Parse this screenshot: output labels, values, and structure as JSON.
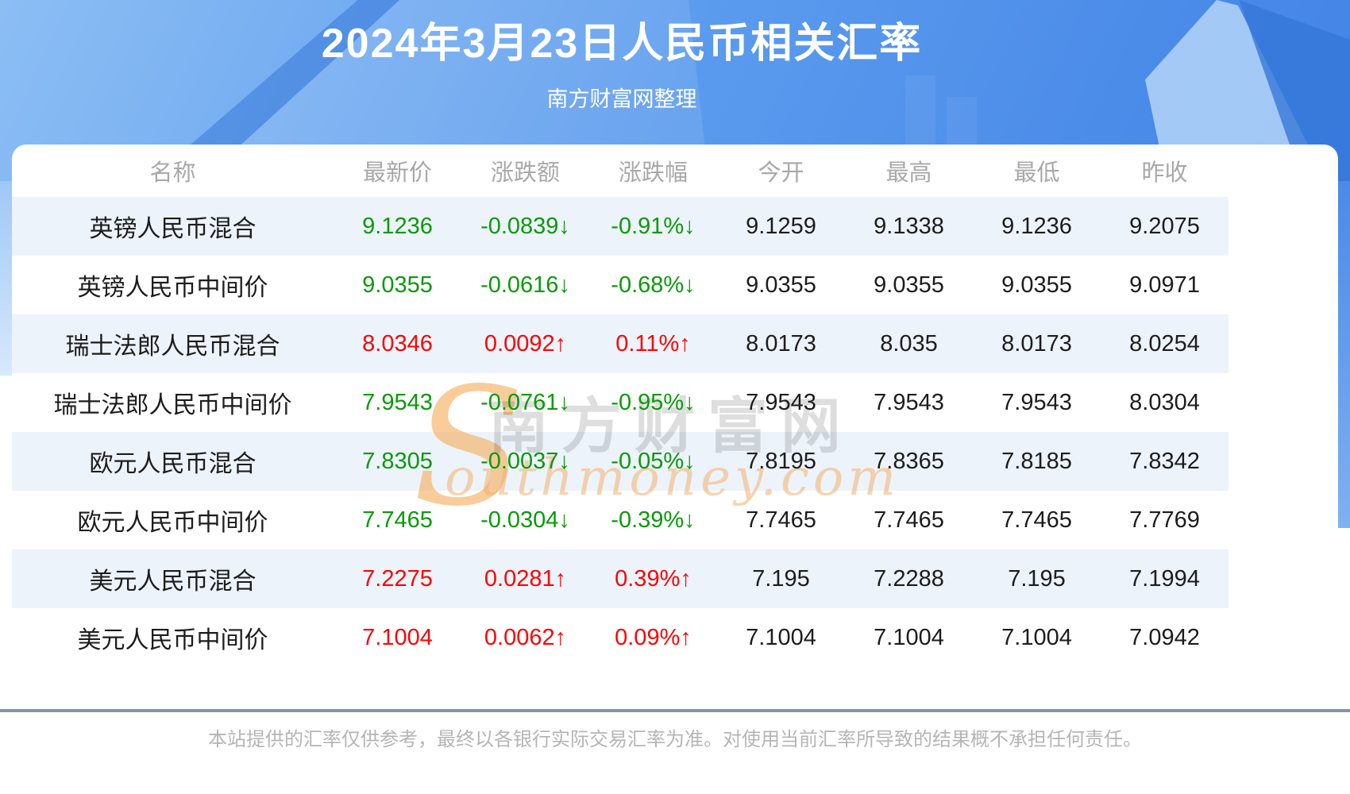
{
  "banner": {
    "title": "2024年3月23日人民币相关汇率",
    "subtitle": "南方财富网整理"
  },
  "table": {
    "columns": [
      "名称",
      "最新价",
      "涨跌额",
      "涨跌幅",
      "今开",
      "最高",
      "最低",
      "昨收"
    ],
    "rows": [
      {
        "name": "英镑人民币混合",
        "latest": "9.1236",
        "change": "-0.0839↓",
        "pct": "-0.91%↓",
        "open": "9.1259",
        "high": "9.1338",
        "low": "9.1236",
        "prev": "9.2075",
        "trend": "down"
      },
      {
        "name": "英镑人民币中间价",
        "latest": "9.0355",
        "change": "-0.0616↓",
        "pct": "-0.68%↓",
        "open": "9.0355",
        "high": "9.0355",
        "low": "9.0355",
        "prev": "9.0971",
        "trend": "down"
      },
      {
        "name": "瑞士法郎人民币混合",
        "latest": "8.0346",
        "change": "0.0092↑",
        "pct": "0.11%↑",
        "open": "8.0173",
        "high": "8.035",
        "low": "8.0173",
        "prev": "8.0254",
        "trend": "up"
      },
      {
        "name": "瑞士法郎人民币中间价",
        "latest": "7.9543",
        "change": "-0.0761↓",
        "pct": "-0.95%↓",
        "open": "7.9543",
        "high": "7.9543",
        "low": "7.9543",
        "prev": "8.0304",
        "trend": "down"
      },
      {
        "name": "欧元人民币混合",
        "latest": "7.8305",
        "change": "-0.0037↓",
        "pct": "-0.05%↓",
        "open": "7.8195",
        "high": "7.8365",
        "low": "7.8185",
        "prev": "7.8342",
        "trend": "down"
      },
      {
        "name": "欧元人民币中间价",
        "latest": "7.7465",
        "change": "-0.0304↓",
        "pct": "-0.39%↓",
        "open": "7.7465",
        "high": "7.7465",
        "low": "7.7465",
        "prev": "7.7769",
        "trend": "down"
      },
      {
        "name": "美元人民币混合",
        "latest": "7.2275",
        "change": "0.0281↑",
        "pct": "0.39%↑",
        "open": "7.195",
        "high": "7.2288",
        "low": "7.195",
        "prev": "7.1994",
        "trend": "up"
      },
      {
        "name": "美元人民币中间价",
        "latest": "7.1004",
        "change": "0.0062↑",
        "pct": "0.09%↑",
        "open": "7.1004",
        "high": "7.1004",
        "low": "7.1004",
        "prev": "7.0942",
        "trend": "up"
      }
    ]
  },
  "watermark": {
    "initial": "S",
    "cn": "南方财富网",
    "en": "outhmoney.com"
  },
  "footer": {
    "disclaimer": "本站提供的汇率仅供参考，最终以各银行实际交易汇率为准。对使用当前汇率所导致的结果概不承担任何责任。"
  },
  "colors": {
    "up_red": "#fc0303",
    "down_green": "#0a9a0a",
    "row_alt_bg": "#edf3fb",
    "header_text_gray": "#a8a8a8",
    "divider_slate": "#8296ac",
    "banner_blue_light": "#8cbef4",
    "banner_blue_deep": "#4283e6",
    "watermark_orange": "#f5ad5e"
  },
  "chart_data": {
    "type": "table",
    "title": "2024年3月23日人民币相关汇率",
    "subtitle": "南方财富网整理",
    "columns": [
      "名称",
      "最新价",
      "涨跌额",
      "涨跌幅",
      "今开",
      "最高",
      "最低",
      "昨收"
    ],
    "rows": [
      [
        "英镑人民币混合",
        9.1236,
        -0.0839,
        "-0.91%",
        9.1259,
        9.1338,
        9.1236,
        9.2075
      ],
      [
        "英镑人民币中间价",
        9.0355,
        -0.0616,
        "-0.68%",
        9.0355,
        9.0355,
        9.0355,
        9.0971
      ],
      [
        "瑞士法郎人民币混合",
        8.0346,
        0.0092,
        "0.11%",
        8.0173,
        8.035,
        8.0173,
        8.0254
      ],
      [
        "瑞士法郎人民币中间价",
        7.9543,
        -0.0761,
        "-0.95%",
        7.9543,
        7.9543,
        7.9543,
        8.0304
      ],
      [
        "欧元人民币混合",
        7.8305,
        -0.0037,
        "-0.05%",
        7.8195,
        7.8365,
        7.8185,
        7.8342
      ],
      [
        "欧元人民币中间价",
        7.7465,
        -0.0304,
        "-0.39%",
        7.7465,
        7.7465,
        7.7465,
        7.7769
      ],
      [
        "美元人民币混合",
        7.2275,
        0.0281,
        "0.39%",
        7.195,
        7.2288,
        7.195,
        7.1994
      ],
      [
        "美元人民币中间价",
        7.1004,
        0.0062,
        "0.09%",
        7.1004,
        7.1004,
        7.1004,
        7.0942
      ]
    ],
    "trend_colors": {
      "up": "#fc0303",
      "down": "#0a9a0a"
    },
    "notes": "本站提供的汇率仅供参考，最终以各银行实际交易汇率为准。对使用当前汇率所导致的结果概不承担任何责任。"
  }
}
